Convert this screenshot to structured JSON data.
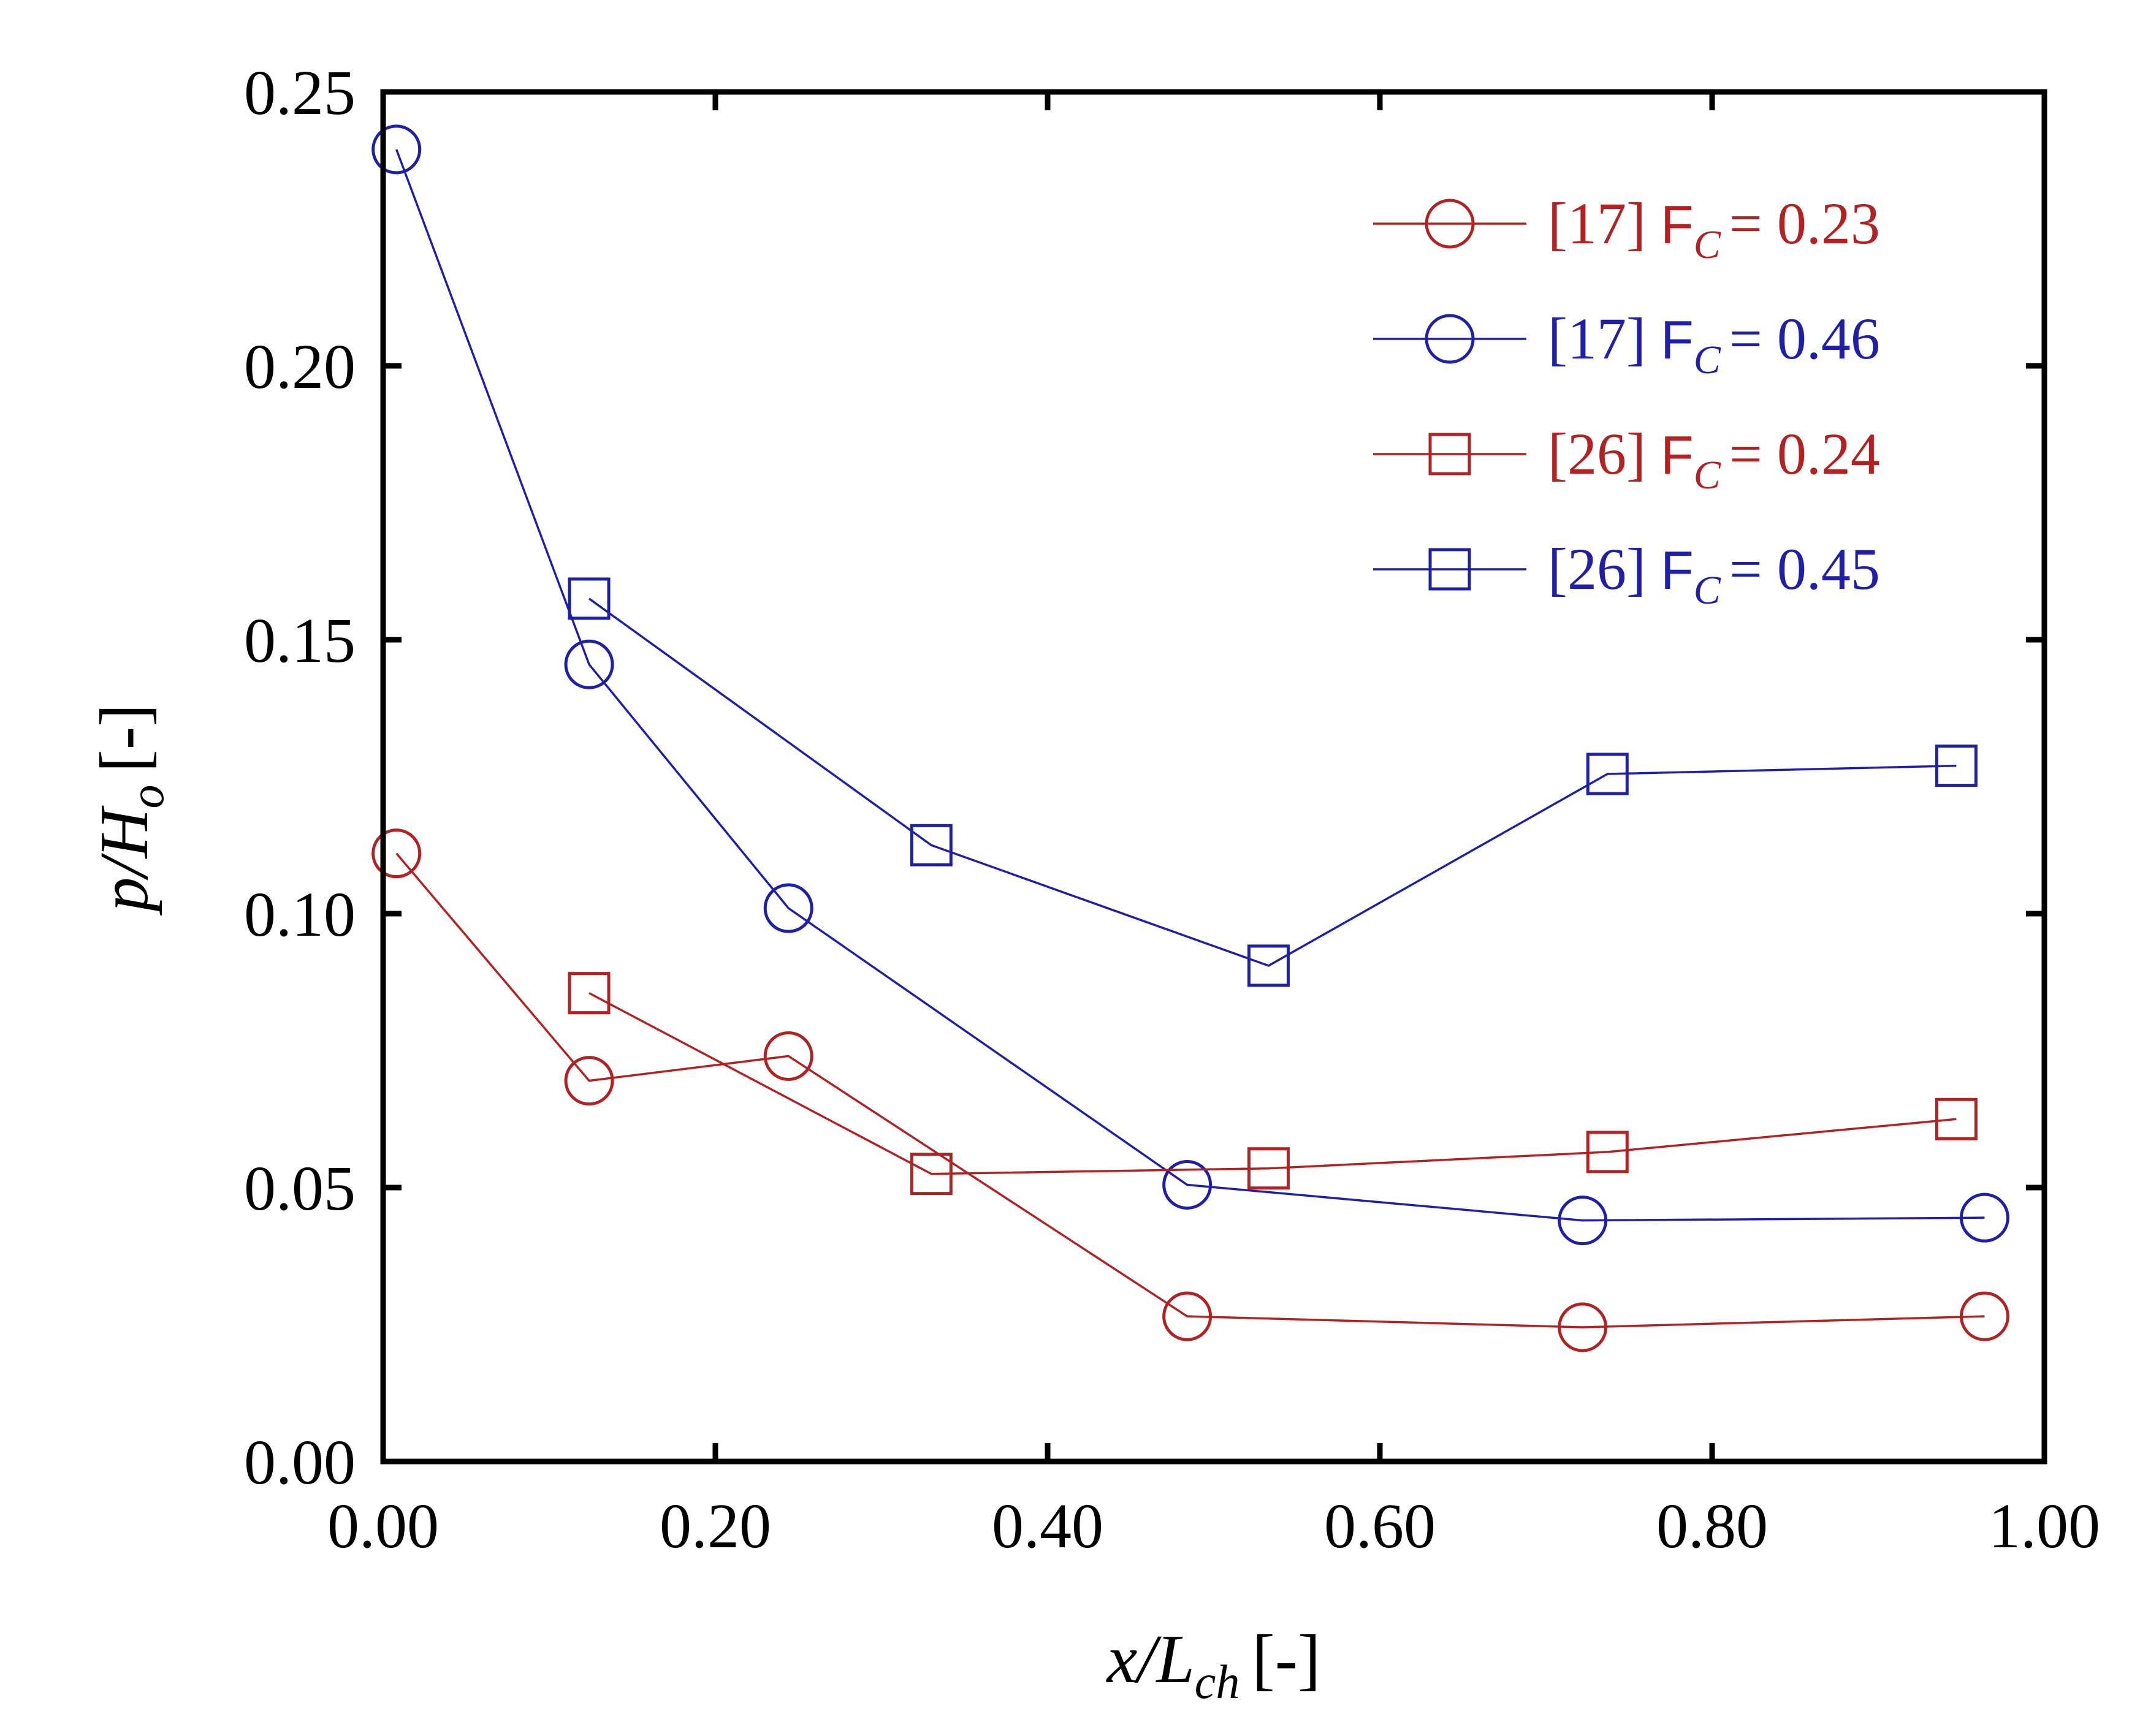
{
  "chart_data": {
    "type": "line",
    "title": "",
    "xlabel": {
      "main": "x/L",
      "sub": "ch",
      "unit": "[-]"
    },
    "ylabel": {
      "main": "p/H",
      "sub": "o",
      "unit": "[-]"
    },
    "xlim": [
      0,
      1
    ],
    "ylim": [
      0,
      0.25
    ],
    "xticks": [
      0,
      0.2,
      0.4,
      0.6,
      0.8,
      1.0
    ],
    "xtick_labels": [
      "0.00",
      "0.20",
      "0.40",
      "0.60",
      "0.80",
      "1.00"
    ],
    "yticks": [
      0,
      0.05,
      0.1,
      0.15,
      0.2,
      0.25
    ],
    "ytick_labels": [
      "0.00",
      "0.05",
      "0.10",
      "0.15",
      "0.20",
      "0.25"
    ],
    "grid": false,
    "legend_position": "top-right",
    "series": [
      {
        "ref": "[17]",
        "param": "F",
        "param_sub": "C",
        "eq": "= 0.23",
        "marker": "circle",
        "color": "#b22222",
        "x": [
          0.008,
          0.124,
          0.244,
          0.484,
          0.722,
          0.964
        ],
        "y": [
          0.111,
          0.0695,
          0.074,
          0.0265,
          0.0245,
          0.0265
        ]
      },
      {
        "ref": "[17]",
        "param": "F",
        "param_sub": "C",
        "eq": "= 0.46",
        "marker": "circle",
        "color": "#1f1fa8",
        "x": [
          0.008,
          0.124,
          0.244,
          0.484,
          0.722,
          0.964
        ],
        "y": [
          0.2395,
          0.1455,
          0.101,
          0.0505,
          0.044,
          0.0445
        ]
      },
      {
        "ref": "[26]",
        "param": "F",
        "param_sub": "C",
        "eq": "= 0.24",
        "marker": "square",
        "color": "#b22222",
        "x": [
          0.124,
          0.33,
          0.533,
          0.737,
          0.947
        ],
        "y": [
          0.0855,
          0.0525,
          0.0535,
          0.0565,
          0.0625
        ]
      },
      {
        "ref": "[26]",
        "param": "F",
        "param_sub": "C",
        "eq": "= 0.45",
        "marker": "square",
        "color": "#1f1fa8",
        "x": [
          0.124,
          0.33,
          0.533,
          0.737,
          0.947
        ],
        "y": [
          0.1575,
          0.1125,
          0.0905,
          0.1255,
          0.127
        ]
      }
    ]
  }
}
